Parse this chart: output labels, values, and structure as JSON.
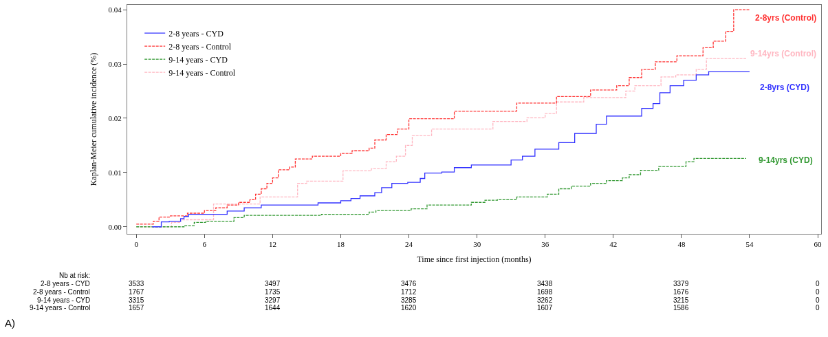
{
  "chart_data": {
    "type": "step",
    "xlabel": "Time since first injection (months)",
    "ylabel": "Kaplan-Meier cumulative incidence (%)",
    "xlim": [
      -0.8,
      60.3
    ],
    "xticks": [
      0,
      6,
      12,
      18,
      24,
      30,
      36,
      42,
      48,
      54,
      60
    ],
    "ylim": [
      -0.0013,
      0.0409
    ],
    "yticks": [
      {
        "value": 0,
        "label": "0.00"
      },
      0.01,
      0.02,
      0.03,
      0.04
    ],
    "grid": false,
    "legend": "top left",
    "marker": "none",
    "series": [
      {
        "name": "2-8 years - CYD",
        "color": "#3333ff",
        "line_style": "solid",
        "x": [
          1.4,
          2.2,
          2.9,
          3.9,
          4.2,
          4.6,
          8.0,
          9.5,
          11.0,
          16,
          18,
          18.9,
          19.7,
          21,
          21.6,
          22.5,
          23.9,
          25,
          25.4,
          26.9,
          28,
          29.5,
          33,
          34,
          35.1,
          37.2,
          38.6,
          40.5,
          41.4,
          44.5,
          45.5,
          46.1,
          47,
          48.2,
          49.3,
          50.4,
          54
        ],
        "values": [
          0,
          0.0009,
          0.001,
          0.0015,
          0.0019,
          0.0023,
          0.0029,
          0.0035,
          0.004,
          0.0044,
          0.0048,
          0.0052,
          0.0057,
          0.0063,
          0.0072,
          0.008,
          0.0082,
          0.0089,
          0.0099,
          0.0101,
          0.0109,
          0.0114,
          0.0123,
          0.013,
          0.0143,
          0.0155,
          0.0172,
          0.0189,
          0.0204,
          0.0218,
          0.0227,
          0.0247,
          0.026,
          0.027,
          0.028,
          0.0286,
          0.0286
        ]
      },
      {
        "name": "2-8 years - Control",
        "color": "#ff3333",
        "line_style": "dashed",
        "x": [
          0,
          1.5,
          2,
          3,
          4.5,
          6,
          7,
          8,
          9,
          10,
          10.5,
          11,
          11.5,
          12,
          12.5,
          13.5,
          14,
          15.5,
          18,
          19,
          20.5,
          21,
          22,
          23,
          24,
          28,
          33.5,
          37,
          40,
          42.3,
          43.4,
          44.5,
          45.7,
          47.6,
          49.9,
          50.8,
          51.9,
          52.6,
          54
        ],
        "values": [
          0.0005,
          0.001,
          0.0018,
          0.002,
          0.0025,
          0.003,
          0.0035,
          0.004,
          0.0045,
          0.005,
          0.006,
          0.007,
          0.008,
          0.009,
          0.0105,
          0.011,
          0.0125,
          0.013,
          0.0135,
          0.014,
          0.0145,
          0.016,
          0.017,
          0.018,
          0.0199,
          0.0213,
          0.0228,
          0.024,
          0.0252,
          0.026,
          0.0275,
          0.029,
          0.0304,
          0.0315,
          0.033,
          0.0342,
          0.036,
          0.04,
          0.04
        ]
      },
      {
        "name": "9-14 years - CYD",
        "color": "#339933",
        "line_style": "dashed",
        "x": [
          0,
          4.2,
          5.1,
          6.1,
          8.6,
          9.5,
          16.3,
          20.5,
          21.1,
          24.2,
          25.6,
          29.5,
          30.7,
          31.8,
          33.5,
          36.2,
          37.2,
          38.3,
          40,
          41.4,
          42.8,
          43.4,
          44.4,
          46,
          48.4,
          49.1,
          53.7
        ],
        "values": [
          0,
          0.0002,
          0.0008,
          0.001,
          0.0017,
          0.0021,
          0.0023,
          0.0027,
          0.003,
          0.0033,
          0.004,
          0.0045,
          0.0049,
          0.005,
          0.0055,
          0.006,
          0.007,
          0.0075,
          0.008,
          0.0085,
          0.009,
          0.0096,
          0.0104,
          0.0111,
          0.012,
          0.0126,
          0.0126
        ]
      },
      {
        "name": "9-14 years - Control",
        "color": "#ffb6c1",
        "line_style": "dashed",
        "x": [
          0,
          3.1,
          3.9,
          6.8,
          10.9,
          14.2,
          15,
          18.2,
          20.7,
          22,
          22.9,
          23.7,
          24.3,
          26,
          31.4,
          34.4,
          36,
          37,
          39.4,
          43.1,
          43.9,
          46.2,
          47.5,
          49.3,
          50.2,
          53.7
        ],
        "values": [
          0,
          0.0008,
          0.0013,
          0.0042,
          0.0055,
          0.008,
          0.0084,
          0.0103,
          0.0107,
          0.012,
          0.013,
          0.015,
          0.0168,
          0.018,
          0.0194,
          0.0201,
          0.0209,
          0.023,
          0.0238,
          0.025,
          0.026,
          0.0276,
          0.028,
          0.029,
          0.031,
          0.031
        ]
      }
    ],
    "annotations": [
      "2-8yrs (CYD)",
      "2-8yrs (Control)",
      "9-14yrs (CYD)",
      "9-14yrs (Control)",
      "Nb at risk:",
      "2-8 years - CYD",
      "3533",
      "3497",
      "3476",
      "3438",
      "3379",
      "0",
      "2-8 years - Control",
      "1767",
      "1735",
      "1712",
      "1698",
      "1676",
      "0",
      "9-14 years - CYD",
      "3315",
      "3297",
      "3285",
      "3262",
      "3215",
      "0",
      "9-14 years - Control",
      "1657",
      "1644",
      "1620",
      "1607",
      "1586",
      "0",
      "A)"
    ]
  }
}
